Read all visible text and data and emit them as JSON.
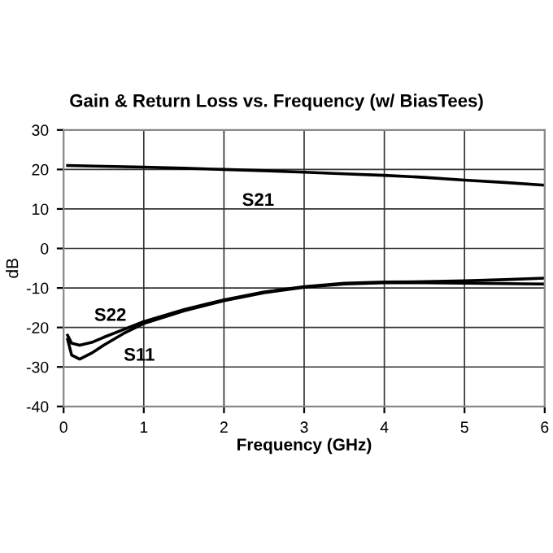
{
  "chart_data": {
    "type": "line",
    "title": "Gain & Return Loss vs. Frequency (w/ BiasTees)",
    "xlabel": "Frequency (GHz)",
    "ylabel": "dB",
    "series": [
      {
        "name": "S21",
        "color": "#000000",
        "x": [
          0.05,
          0.5,
          1,
          1.5,
          2,
          2.5,
          3,
          3.5,
          4,
          4.5,
          5,
          5.5,
          6
        ],
        "values": [
          21,
          20.8,
          20.6,
          20.3,
          20,
          19.7,
          19.3,
          18.9,
          18.5,
          18,
          17.3,
          16.7,
          16
        ]
      },
      {
        "name": "S22",
        "color": "#000000",
        "x": [
          0.05,
          0.1,
          0.2,
          0.35,
          0.5,
          0.75,
          1,
          1.5,
          2,
          2.5,
          3,
          3.5,
          4,
          4.5,
          5,
          5.5,
          6
        ],
        "values": [
          -22,
          -24,
          -24.5,
          -23.8,
          -22.5,
          -20.5,
          -18.5,
          -15.5,
          -13,
          -11,
          -9.7,
          -8.8,
          -8.5,
          -8.4,
          -8.2,
          -7.9,
          -7.5
        ]
      },
      {
        "name": "S11",
        "color": "#000000",
        "x": [
          0.05,
          0.1,
          0.2,
          0.35,
          0.5,
          0.75,
          1,
          1.5,
          2,
          2.5,
          3,
          3.5,
          4,
          4.5,
          5,
          5.5,
          6
        ],
        "values": [
          -23,
          -27,
          -28,
          -26.5,
          -24.5,
          -21.5,
          -19,
          -15.8,
          -13.2,
          -11.2,
          -9.8,
          -9,
          -8.7,
          -8.7,
          -8.8,
          -8.9,
          -9
        ]
      }
    ],
    "xlim": [
      0,
      6
    ],
    "xticks": [
      0,
      1,
      2,
      3,
      4,
      5,
      6
    ],
    "ylim": [
      -40,
      30
    ],
    "yticks": [
      -40,
      -30,
      -20,
      -10,
      0,
      10,
      20,
      30
    ],
    "grid": true
  }
}
